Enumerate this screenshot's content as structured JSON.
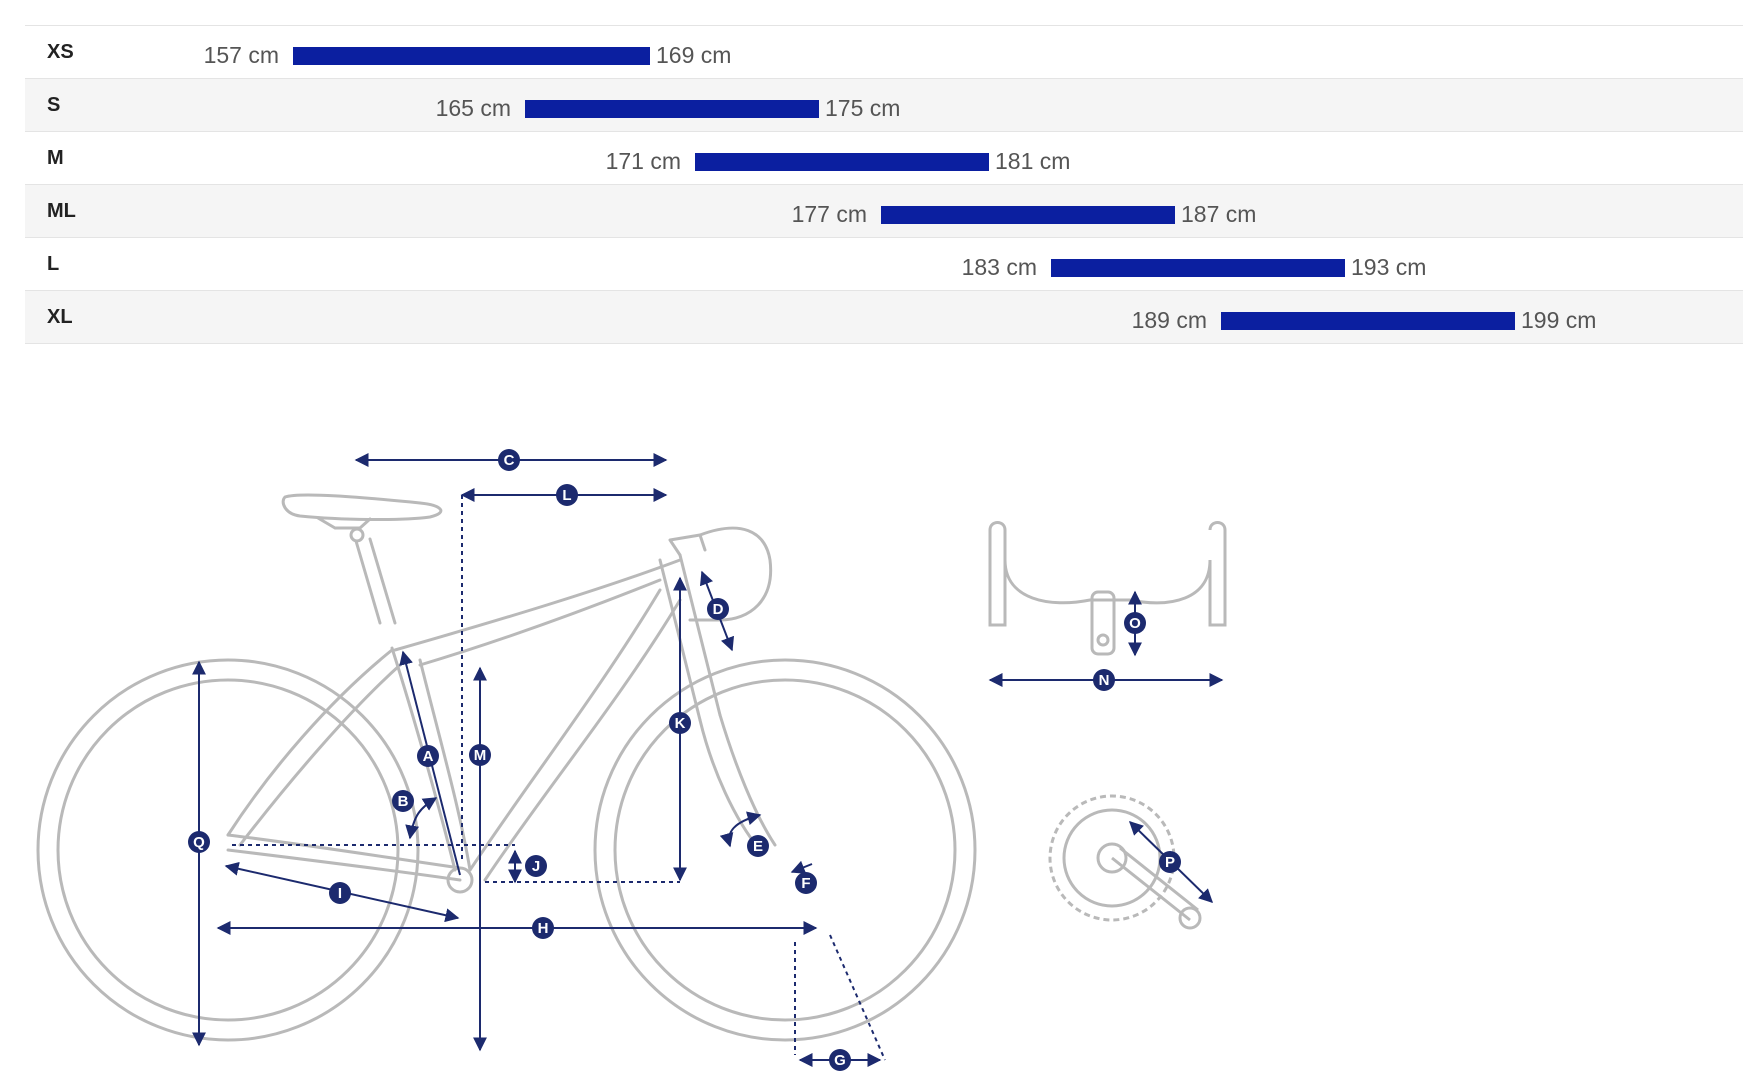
{
  "size_chart": {
    "rows": [
      {
        "size": "XS",
        "min_height": "157 cm",
        "max_height": "169 cm",
        "min_cm": 157,
        "max_cm": 169
      },
      {
        "size": "S",
        "min_height": "165 cm",
        "max_height": "175 cm",
        "min_cm": 165,
        "max_cm": 175
      },
      {
        "size": "M",
        "min_height": "171 cm",
        "max_height": "181 cm",
        "min_cm": 171,
        "max_cm": 181
      },
      {
        "size": "ML",
        "min_height": "177 cm",
        "max_height": "187 cm",
        "min_cm": 177,
        "max_cm": 187
      },
      {
        "size": "L",
        "min_height": "183 cm",
        "max_height": "193 cm",
        "min_cm": 183,
        "max_cm": 193
      },
      {
        "size": "XL",
        "min_height": "189 cm",
        "max_height": "199 cm",
        "min_cm": 189,
        "max_cm": 199
      }
    ],
    "bar_color": "#0b1fa0"
  },
  "geometry_labels": {
    "A": "A",
    "B": "B",
    "C": "C",
    "D": "D",
    "E": "E",
    "F": "F",
    "G": "G",
    "H": "H",
    "I": "I",
    "J": "J",
    "K": "K",
    "L": "L",
    "M": "M",
    "N": "N",
    "O": "O",
    "P": "P",
    "Q": "Q"
  },
  "colors": {
    "measurement": "#1c2a6e",
    "outline": "#b9b9b9"
  }
}
